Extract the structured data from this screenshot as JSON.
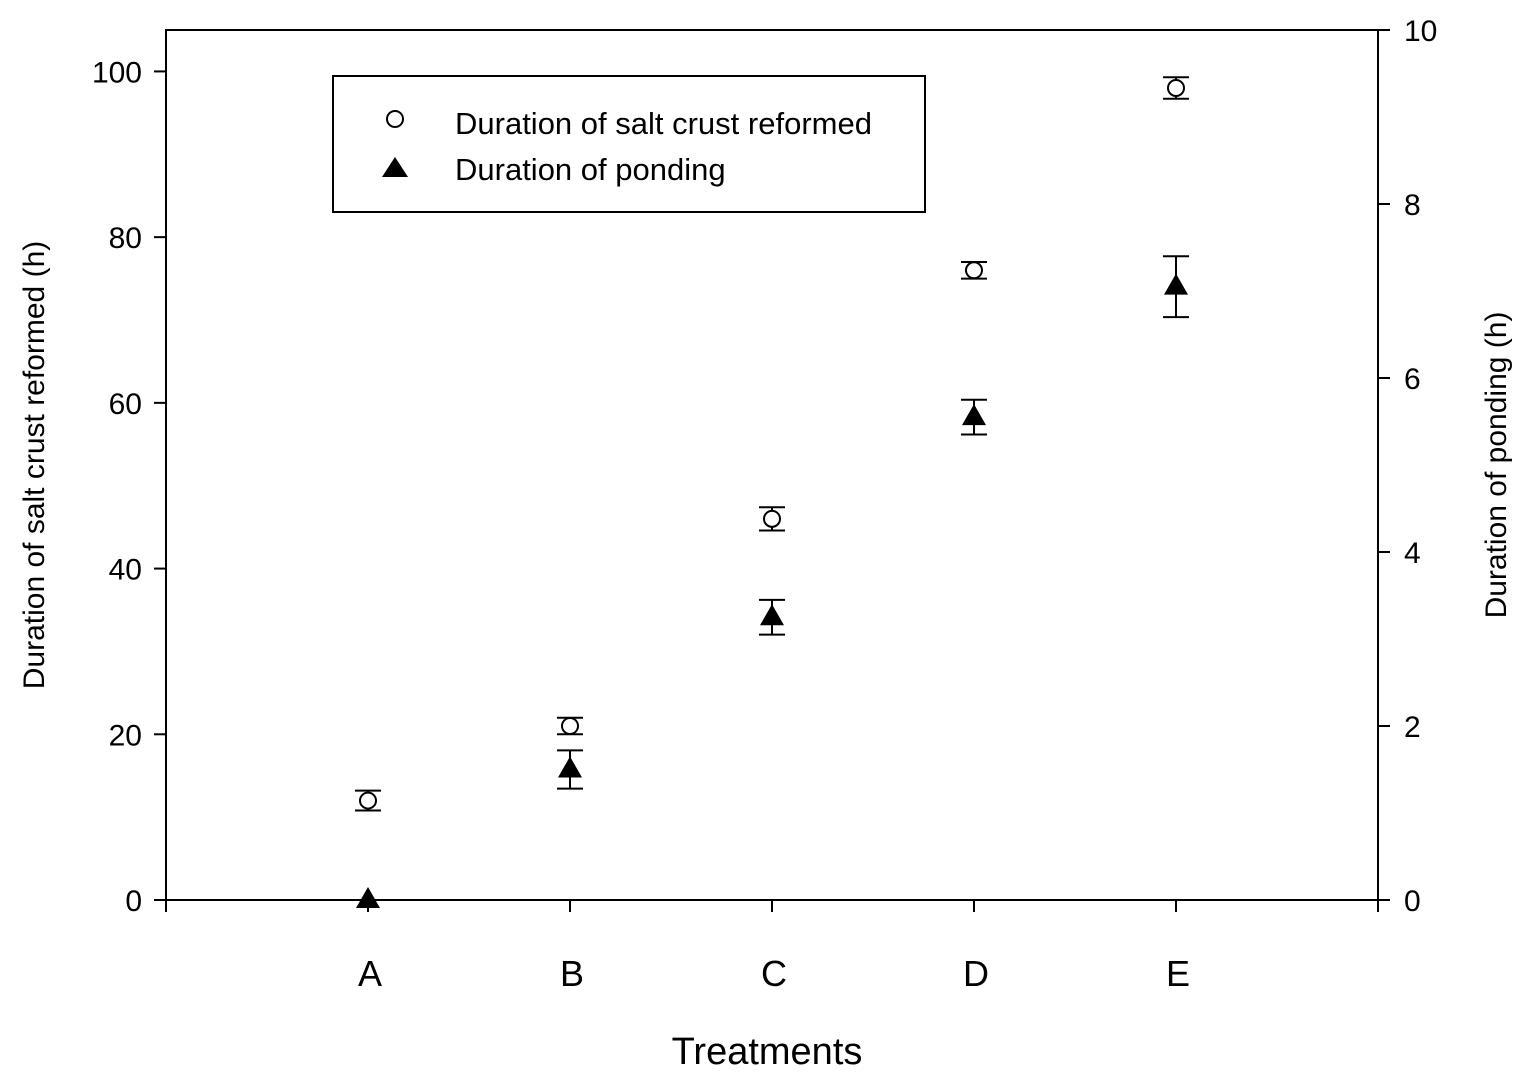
{
  "chart_data": {
    "type": "scatter",
    "xlabel": "Treatments",
    "ylabel": "Duration of salt crust reformed (h)",
    "y2label": "Duration of ponding (h)",
    "categories": [
      "A",
      "B",
      "C",
      "D",
      "E"
    ],
    "xlim": [
      -1,
      5
    ],
    "ylim": [
      0,
      105
    ],
    "y2lim": [
      0,
      10
    ],
    "yticks": [
      "0",
      "20",
      "40",
      "60",
      "80",
      "100"
    ],
    "y2ticks": [
      "0",
      "2",
      "4",
      "6",
      "8",
      "10"
    ],
    "grid": false,
    "legend_position": "top-left",
    "series": [
      {
        "name": "Duration of salt crust reformed",
        "axis": "left",
        "marker": "open-circle",
        "values": [
          12,
          21,
          46,
          76,
          98
        ],
        "errors": [
          1.2,
          1.0,
          1.4,
          1.0,
          1.3
        ]
      },
      {
        "name": "Duration of ponding",
        "axis": "right",
        "marker": "filled-triangle",
        "values": [
          0,
          1.5,
          3.25,
          5.55,
          7.05
        ],
        "errors": [
          0,
          0.22,
          0.2,
          0.2,
          0.35
        ]
      }
    ]
  }
}
